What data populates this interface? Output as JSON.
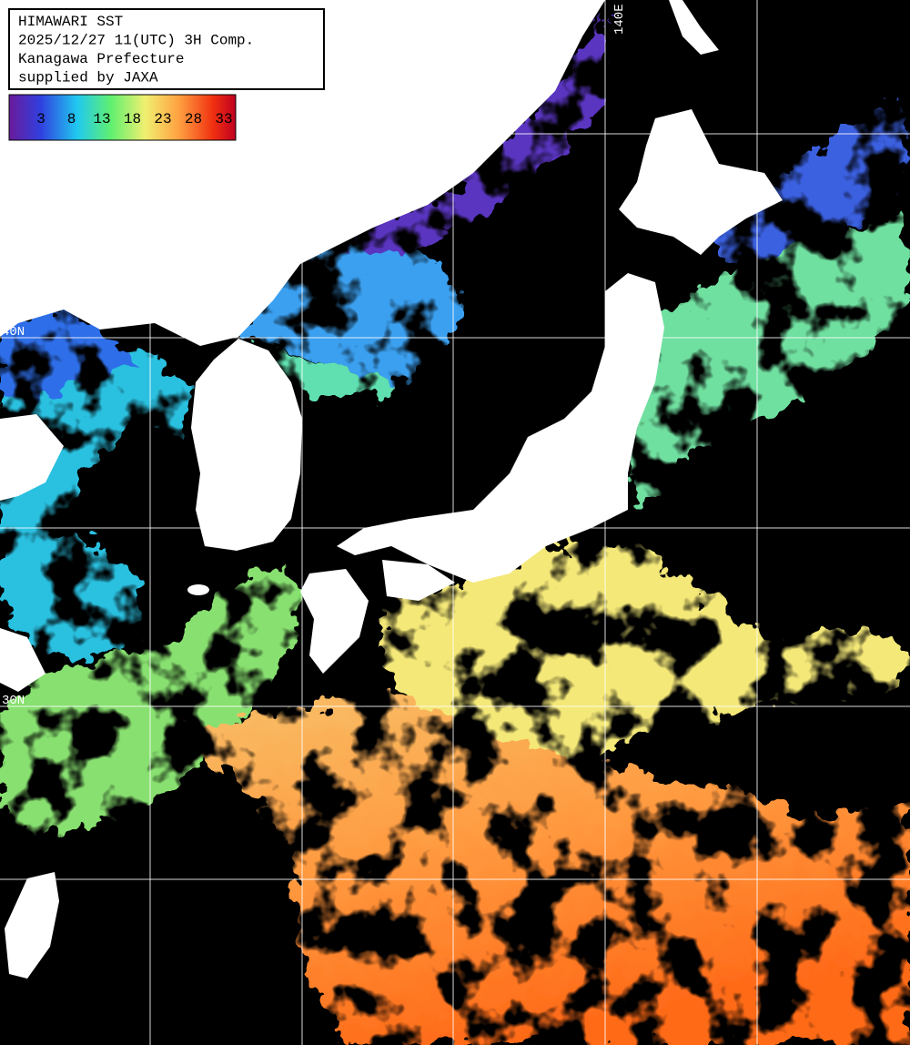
{
  "header": {
    "lines": [
      "HIMAWARI SST",
      "2025/12/27 11(UTC) 3H Comp.",
      "Kanagawa Prefecture",
      "supplied by JAXA"
    ]
  },
  "colorbar": {
    "ticks": [
      3,
      8,
      13,
      18,
      23,
      28,
      33
    ]
  },
  "grid_labels": [
    "140E",
    "40N",
    "30N"
  ]
}
